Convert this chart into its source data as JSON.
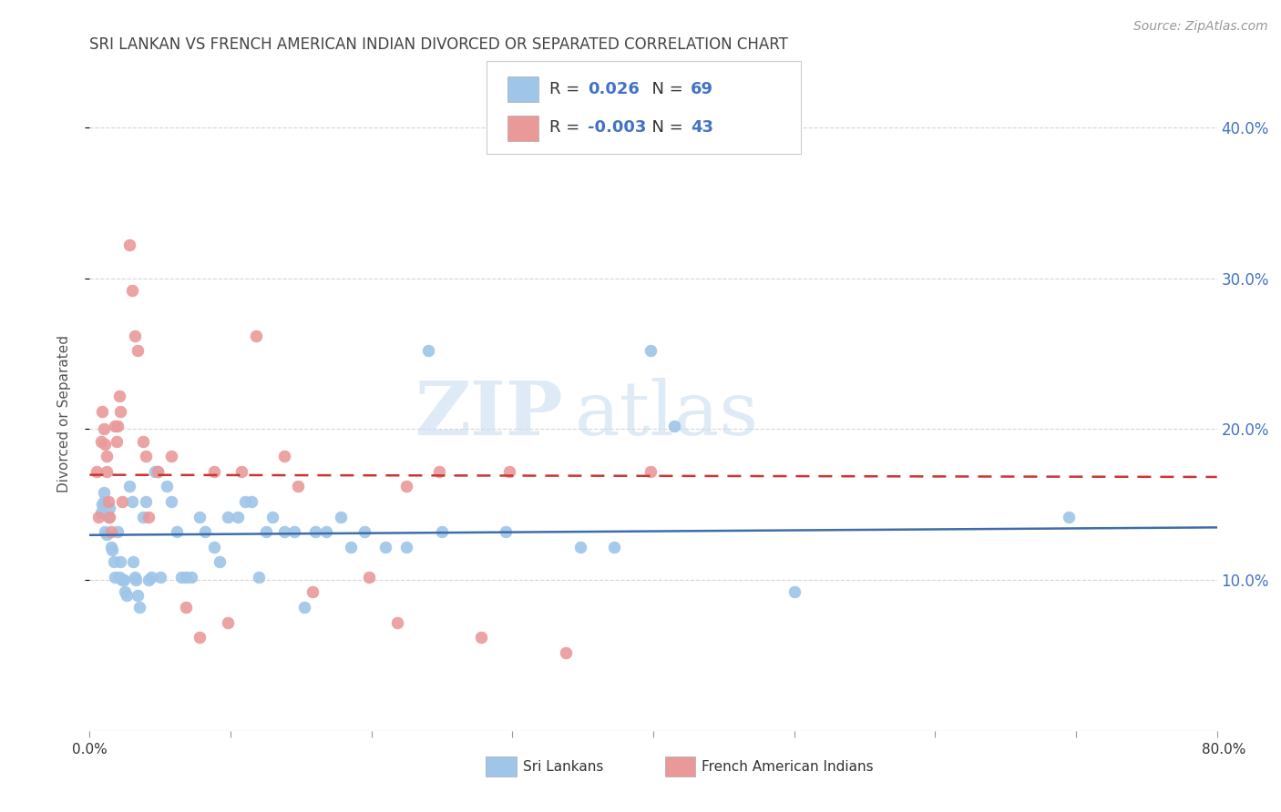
{
  "title": "SRI LANKAN VS FRENCH AMERICAN INDIAN DIVORCED OR SEPARATED CORRELATION CHART",
  "source": "Source: ZipAtlas.com",
  "ylabel": "Divorced or Separated",
  "xlim": [
    0.0,
    0.8
  ],
  "ylim": [
    0.0,
    0.42
  ],
  "yticks": [
    0.1,
    0.2,
    0.3,
    0.4
  ],
  "ytick_labels": [
    "10.0%",
    "20.0%",
    "30.0%",
    "40.0%"
  ],
  "xticks": [
    0.0,
    0.1,
    0.2,
    0.3,
    0.4,
    0.5,
    0.6,
    0.7,
    0.8
  ],
  "legend_blue_r": " 0.026",
  "legend_blue_n": "69",
  "legend_pink_r": "-0.003",
  "legend_pink_n": "43",
  "legend_label_blue": "Sri Lankans",
  "legend_label_pink": "French American Indians",
  "blue_color": "#9fc5e8",
  "pink_color": "#ea9999",
  "trendline_blue_color": "#3d6ea8",
  "trendline_pink_color": "#cc3333",
  "watermark_zip": "ZIP",
  "watermark_atlas": "atlas",
  "background_color": "#ffffff",
  "grid_color": "#cccccc",
  "title_color": "#444444",
  "right_tick_color": "#4472c4",
  "blue_scatter_x": [
    0.008,
    0.009,
    0.01,
    0.01,
    0.011,
    0.012,
    0.013,
    0.014,
    0.015,
    0.016,
    0.017,
    0.018,
    0.02,
    0.021,
    0.022,
    0.023,
    0.024,
    0.025,
    0.026,
    0.028,
    0.03,
    0.031,
    0.032,
    0.033,
    0.034,
    0.035,
    0.038,
    0.04,
    0.042,
    0.044,
    0.046,
    0.048,
    0.05,
    0.055,
    0.058,
    0.062,
    0.065,
    0.068,
    0.072,
    0.078,
    0.082,
    0.088,
    0.092,
    0.098,
    0.105,
    0.11,
    0.115,
    0.12,
    0.125,
    0.13,
    0.138,
    0.145,
    0.152,
    0.16,
    0.168,
    0.178,
    0.185,
    0.195,
    0.21,
    0.225,
    0.24,
    0.25,
    0.295,
    0.348,
    0.372,
    0.398,
    0.415,
    0.5,
    0.695
  ],
  "blue_scatter_y": [
    0.145,
    0.15,
    0.152,
    0.158,
    0.132,
    0.13,
    0.142,
    0.148,
    0.122,
    0.12,
    0.112,
    0.102,
    0.132,
    0.102,
    0.112,
    0.1,
    0.1,
    0.092,
    0.09,
    0.162,
    0.152,
    0.112,
    0.102,
    0.1,
    0.09,
    0.082,
    0.142,
    0.152,
    0.1,
    0.102,
    0.172,
    0.172,
    0.102,
    0.162,
    0.152,
    0.132,
    0.102,
    0.102,
    0.102,
    0.142,
    0.132,
    0.122,
    0.112,
    0.142,
    0.142,
    0.152,
    0.152,
    0.102,
    0.132,
    0.142,
    0.132,
    0.132,
    0.082,
    0.132,
    0.132,
    0.142,
    0.122,
    0.132,
    0.122,
    0.122,
    0.252,
    0.132,
    0.132,
    0.122,
    0.122,
    0.252,
    0.202,
    0.092,
    0.142
  ],
  "pink_scatter_x": [
    0.005,
    0.006,
    0.008,
    0.009,
    0.01,
    0.011,
    0.012,
    0.012,
    0.013,
    0.014,
    0.015,
    0.018,
    0.019,
    0.02,
    0.021,
    0.022,
    0.023,
    0.028,
    0.03,
    0.032,
    0.034,
    0.038,
    0.04,
    0.042,
    0.048,
    0.058,
    0.068,
    0.078,
    0.088,
    0.098,
    0.108,
    0.118,
    0.138,
    0.148,
    0.158,
    0.198,
    0.218,
    0.225,
    0.248,
    0.278,
    0.298,
    0.338,
    0.398
  ],
  "pink_scatter_y": [
    0.172,
    0.142,
    0.192,
    0.212,
    0.2,
    0.19,
    0.182,
    0.172,
    0.152,
    0.142,
    0.132,
    0.202,
    0.192,
    0.202,
    0.222,
    0.212,
    0.152,
    0.322,
    0.292,
    0.262,
    0.252,
    0.192,
    0.182,
    0.142,
    0.172,
    0.182,
    0.082,
    0.062,
    0.172,
    0.072,
    0.172,
    0.262,
    0.182,
    0.162,
    0.092,
    0.102,
    0.072,
    0.162,
    0.172,
    0.062,
    0.172,
    0.052,
    0.172
  ]
}
